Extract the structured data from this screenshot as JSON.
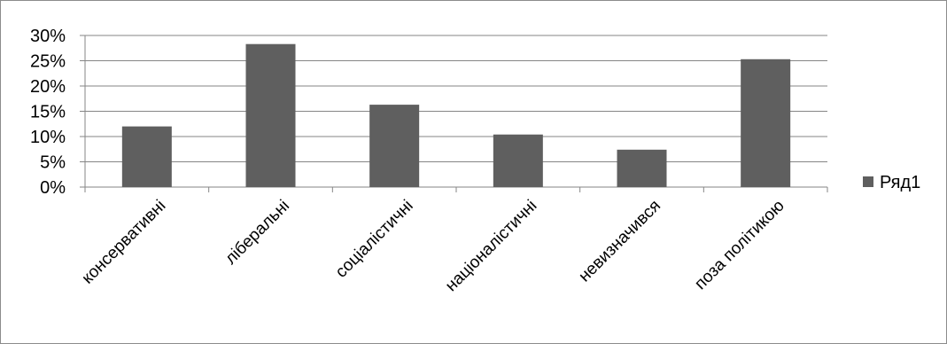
{
  "chart_data": {
    "type": "bar",
    "categories": [
      "консервативні",
      "ліберальні",
      "соціалістичні",
      "націоналістичні",
      "невизначився",
      "поза політикою"
    ],
    "series": [
      {
        "name": "Ряд1",
        "values": [
          0.12,
          0.283,
          0.163,
          0.104,
          0.074,
          0.253
        ],
        "color": "#5f5f5f"
      }
    ],
    "y_ticks": [
      "0%",
      "5%",
      "10%",
      "15%",
      "20%",
      "25%",
      "30%"
    ],
    "ylim": [
      0,
      0.3
    ],
    "grid": true,
    "legend_position": "right",
    "title": "",
    "xlabel": "",
    "ylabel": ""
  }
}
